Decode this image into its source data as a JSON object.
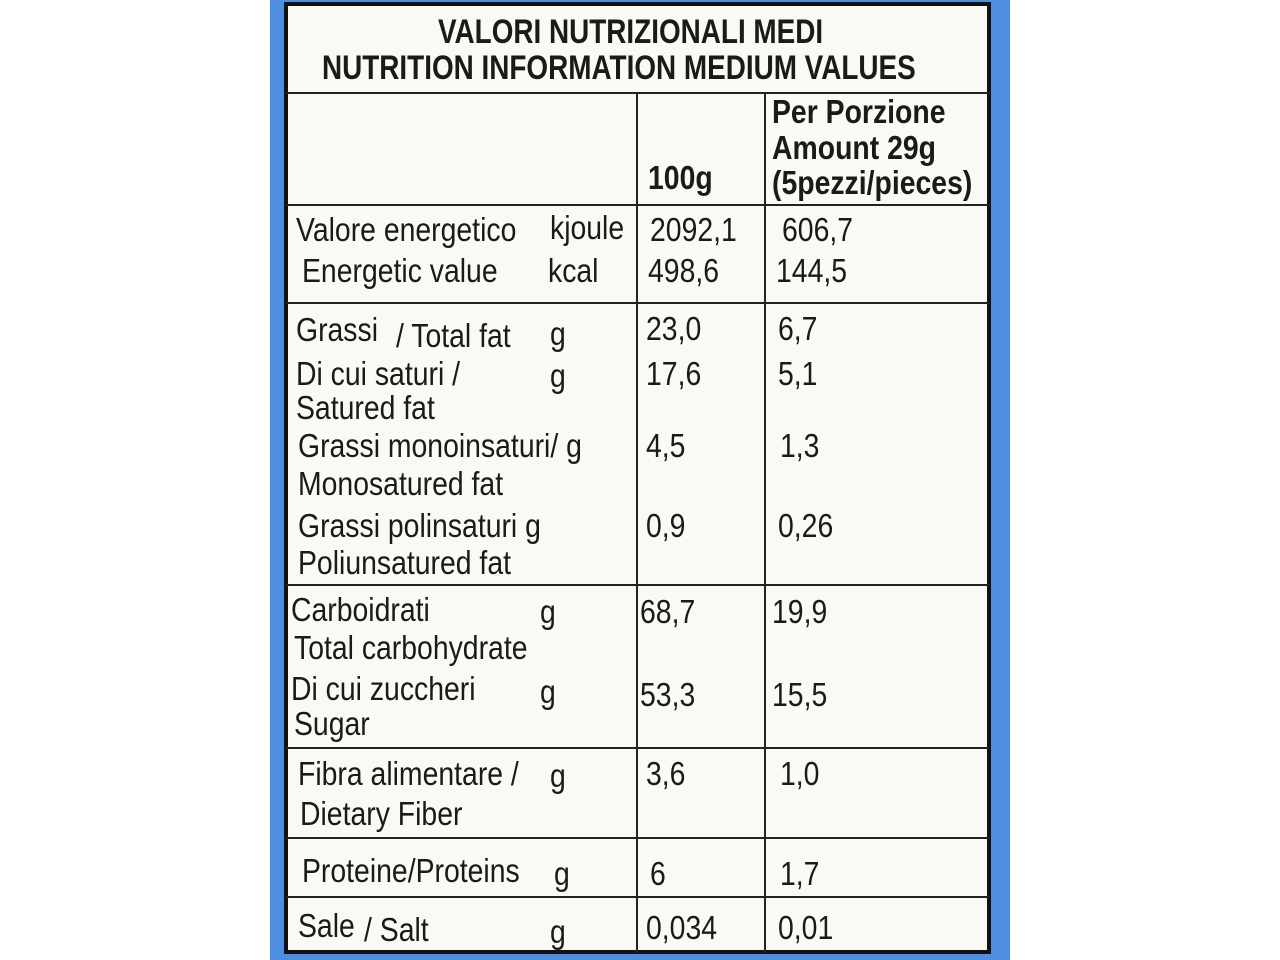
{
  "title_it": "VALORI NUTRIZIONALI MEDI",
  "title_en": "NUTRITION INFORMATION MEDIUM VALUES",
  "col_100g": "100g",
  "col_portion": [
    "Per Porzione",
    "Amount 29g",
    "(5pezzi/pieces)"
  ],
  "energy": {
    "label_it": "Valore energetico",
    "label_en": "Energetic value",
    "unit_kj": "kjoule",
    "unit_kcal": "kcal",
    "kj_100": "2092,1",
    "kcal_100": "498,6",
    "kj_portion": "606,7",
    "kcal_portion": "144,5"
  },
  "fat": {
    "l1": "Grassi",
    "l1b": "/ Total fat",
    "unit": "g",
    "v100": "23,0",
    "vp": "6,7"
  },
  "sat": {
    "l1": "Di cui saturi /",
    "l2": "Satured fat",
    "unit": "g",
    "v100": "17,6",
    "vp": "5,1"
  },
  "mono": {
    "l1": "Grassi monoinsaturi/ g",
    "l2": "Monosatured  fat",
    "v100": "4,5",
    "vp": "1,3"
  },
  "poly": {
    "l1": "Grassi polinsaturi g",
    "l2": "Poliunsatured fat",
    "v100": "0,9",
    "vp": "0,26"
  },
  "carb": {
    "l1": "Carboidrati",
    "l2": "Total carbohydrate",
    "unit": "g",
    "v100": "68,7",
    "vp": "19,9"
  },
  "sugar": {
    "l1": "Di cui zuccheri",
    "l2": "Sugar",
    "unit": "g",
    "v100": "53,3",
    "vp": "15,5"
  },
  "fiber": {
    "l1": "Fibra alimentare /",
    "l2": "Dietary Fiber",
    "unit": "g",
    "v100": "3,6",
    "vp": "1,0"
  },
  "protein": {
    "l1": "Proteine/Proteins",
    "unit": "g",
    "v100": "6",
    "vp": "1,7"
  },
  "salt": {
    "l1": "Sale",
    "l1b": "/ Salt",
    "unit": "g",
    "v100": "0,034",
    "vp": "0,01"
  }
}
